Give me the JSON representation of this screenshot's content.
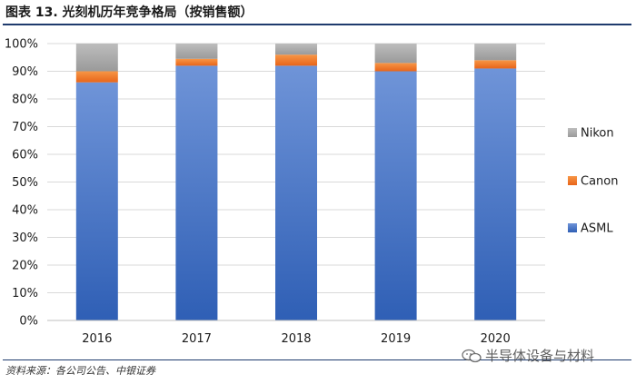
{
  "header": {
    "title": "图表 13. 光刻机历年竞争格局（按销售额）"
  },
  "footer": {
    "source": "资料来源：各公司公告、中银证券",
    "watermark": "半导体设备与材料"
  },
  "chart_data": {
    "type": "bar",
    "stacked": true,
    "percent": true,
    "categories": [
      "2016",
      "2017",
      "2018",
      "2019",
      "2020"
    ],
    "series": [
      {
        "name": "ASML",
        "values": [
          86,
          92,
          92,
          90,
          91
        ],
        "color": "#4472c4"
      },
      {
        "name": "Canon",
        "values": [
          4,
          2.5,
          4,
          3,
          3
        ],
        "color": "#ed7d31"
      },
      {
        "name": "Nikon",
        "values": [
          10,
          5.5,
          4,
          7,
          6
        ],
        "color": "#a5a5a5"
      }
    ],
    "ylim": [
      0,
      100
    ],
    "yticks": [
      "0%",
      "10%",
      "20%",
      "30%",
      "40%",
      "50%",
      "60%",
      "70%",
      "80%",
      "90%",
      "100%"
    ],
    "grid": true,
    "legend_position": "right",
    "legend_order": [
      "Nikon",
      "Canon",
      "ASML"
    ]
  }
}
